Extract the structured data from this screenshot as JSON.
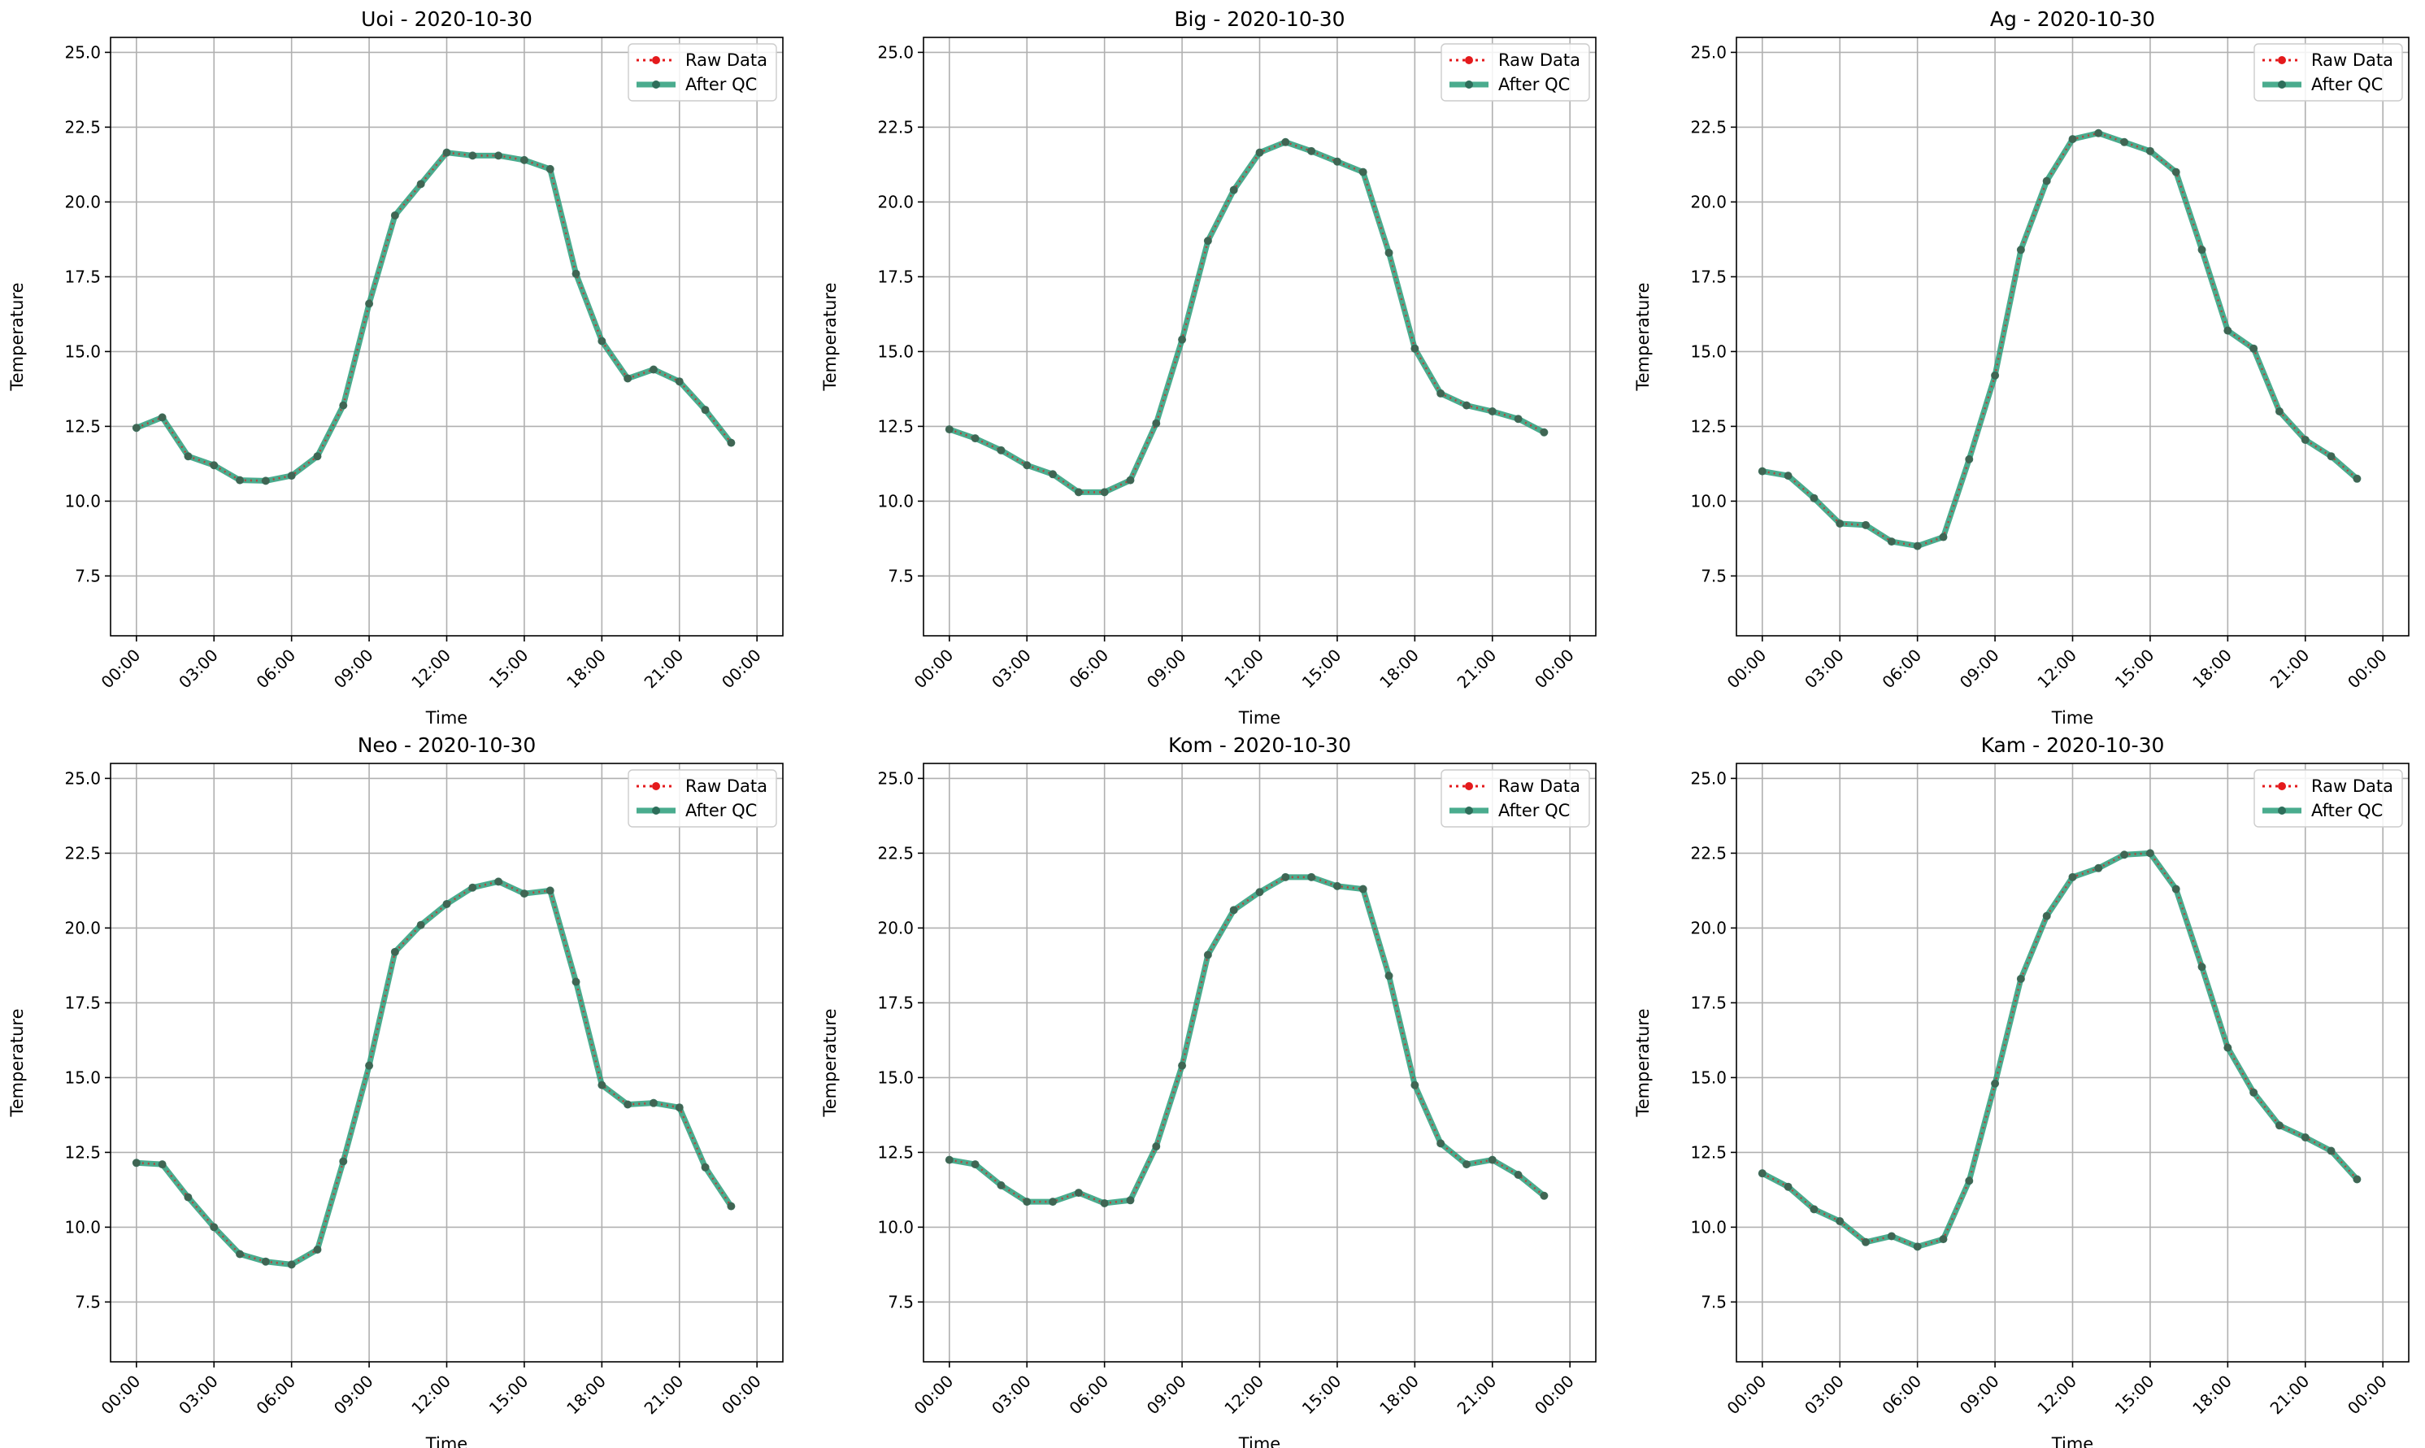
{
  "chart_data": [
    {
      "type": "line",
      "title": "Uoi - 2020-10-30",
      "xlabel": "Time",
      "ylabel": "Temperature",
      "ylim": [
        5.5,
        25.5
      ],
      "yticks": [
        7.5,
        10.0,
        12.5,
        15.0,
        17.5,
        20.0,
        22.5,
        25.0
      ],
      "xticks": [
        "00:00",
        "03:00",
        "06:00",
        "09:00",
        "12:00",
        "15:00",
        "18:00",
        "21:00",
        "00:00"
      ],
      "grid": true,
      "legend": "top-right",
      "x": [
        "00:00",
        "01:00",
        "02:00",
        "03:00",
        "04:00",
        "05:00",
        "06:00",
        "07:00",
        "08:00",
        "09:00",
        "10:00",
        "11:00",
        "12:00",
        "13:00",
        "14:00",
        "15:00",
        "16:00",
        "17:00",
        "18:00",
        "19:00",
        "20:00",
        "21:00",
        "22:00",
        "23:00"
      ],
      "series": [
        {
          "name": "Raw Data",
          "color": "#e41a1c",
          "values": [
            12.45,
            12.8,
            11.5,
            11.2,
            10.7,
            10.68,
            10.85,
            11.5,
            13.2,
            16.6,
            19.55,
            20.6,
            21.65,
            21.55,
            21.55,
            21.4,
            21.1,
            17.6,
            15.35,
            14.1,
            14.4,
            14.0,
            13.05,
            11.95
          ]
        },
        {
          "name": "After QC",
          "color": "#2a9d7a",
          "values": [
            12.45,
            12.8,
            11.5,
            11.2,
            10.7,
            10.68,
            10.85,
            11.5,
            13.2,
            16.6,
            19.55,
            20.6,
            21.65,
            21.55,
            21.55,
            21.4,
            21.1,
            17.6,
            15.35,
            14.1,
            14.4,
            14.0,
            13.05,
            11.95
          ]
        }
      ]
    },
    {
      "type": "line",
      "title": "Big - 2020-10-30",
      "xlabel": "Time",
      "ylabel": "Temperature",
      "ylim": [
        5.5,
        25.5
      ],
      "yticks": [
        7.5,
        10.0,
        12.5,
        15.0,
        17.5,
        20.0,
        22.5,
        25.0
      ],
      "xticks": [
        "00:00",
        "03:00",
        "06:00",
        "09:00",
        "12:00",
        "15:00",
        "18:00",
        "21:00",
        "00:00"
      ],
      "grid": true,
      "legend": "top-right",
      "x": [
        "00:00",
        "01:00",
        "02:00",
        "03:00",
        "04:00",
        "05:00",
        "06:00",
        "07:00",
        "08:00",
        "09:00",
        "10:00",
        "11:00",
        "12:00",
        "13:00",
        "14:00",
        "15:00",
        "16:00",
        "17:00",
        "18:00",
        "19:00",
        "20:00",
        "21:00",
        "22:00",
        "23:00"
      ],
      "series": [
        {
          "name": "Raw Data",
          "color": "#e41a1c",
          "values": [
            12.4,
            12.1,
            11.7,
            11.2,
            10.9,
            10.3,
            10.3,
            10.7,
            12.6,
            15.4,
            18.7,
            20.4,
            21.65,
            22.0,
            21.7,
            21.35,
            21.0,
            18.3,
            15.1,
            13.6,
            13.2,
            13.0,
            12.75,
            12.3
          ]
        },
        {
          "name": "After QC",
          "color": "#2a9d7a",
          "values": [
            12.4,
            12.1,
            11.7,
            11.2,
            10.9,
            10.3,
            10.3,
            10.7,
            12.6,
            15.4,
            18.7,
            20.4,
            21.65,
            22.0,
            21.7,
            21.35,
            21.0,
            18.3,
            15.1,
            13.6,
            13.2,
            13.0,
            12.75,
            12.3
          ]
        }
      ]
    },
    {
      "type": "line",
      "title": "Ag - 2020-10-30",
      "xlabel": "Time",
      "ylabel": "Temperature",
      "ylim": [
        5.5,
        25.5
      ],
      "yticks": [
        7.5,
        10.0,
        12.5,
        15.0,
        17.5,
        20.0,
        22.5,
        25.0
      ],
      "xticks": [
        "00:00",
        "03:00",
        "06:00",
        "09:00",
        "12:00",
        "15:00",
        "18:00",
        "21:00",
        "00:00"
      ],
      "grid": true,
      "legend": "top-right",
      "x": [
        "00:00",
        "01:00",
        "02:00",
        "03:00",
        "04:00",
        "05:00",
        "06:00",
        "07:00",
        "08:00",
        "09:00",
        "10:00",
        "11:00",
        "12:00",
        "13:00",
        "14:00",
        "15:00",
        "16:00",
        "17:00",
        "18:00",
        "19:00",
        "20:00",
        "21:00",
        "22:00",
        "23:00"
      ],
      "series": [
        {
          "name": "Raw Data",
          "color": "#e41a1c",
          "values": [
            11.0,
            10.85,
            10.1,
            9.25,
            9.2,
            8.65,
            8.5,
            8.8,
            11.4,
            14.2,
            18.4,
            20.7,
            22.1,
            22.3,
            22.0,
            21.7,
            21.0,
            18.4,
            15.7,
            15.1,
            13.0,
            12.05,
            11.5,
            10.75
          ]
        },
        {
          "name": "After QC",
          "color": "#2a9d7a",
          "values": [
            11.0,
            10.85,
            10.1,
            9.25,
            9.2,
            8.65,
            8.5,
            8.8,
            11.4,
            14.2,
            18.4,
            20.7,
            22.1,
            22.3,
            22.0,
            21.7,
            21.0,
            18.4,
            15.7,
            15.1,
            13.0,
            12.05,
            11.5,
            10.75
          ]
        }
      ]
    },
    {
      "type": "line",
      "title": "Neo - 2020-10-30",
      "xlabel": "Time",
      "ylabel": "Temperature",
      "ylim": [
        5.5,
        25.5
      ],
      "yticks": [
        7.5,
        10.0,
        12.5,
        15.0,
        17.5,
        20.0,
        22.5,
        25.0
      ],
      "xticks": [
        "00:00",
        "03:00",
        "06:00",
        "09:00",
        "12:00",
        "15:00",
        "18:00",
        "21:00",
        "00:00"
      ],
      "grid": true,
      "legend": "top-right",
      "x": [
        "00:00",
        "01:00",
        "02:00",
        "03:00",
        "04:00",
        "05:00",
        "06:00",
        "07:00",
        "08:00",
        "09:00",
        "10:00",
        "11:00",
        "12:00",
        "13:00",
        "14:00",
        "15:00",
        "16:00",
        "17:00",
        "18:00",
        "19:00",
        "20:00",
        "21:00",
        "22:00",
        "23:00"
      ],
      "series": [
        {
          "name": "Raw Data",
          "color": "#e41a1c",
          "values": [
            12.15,
            12.1,
            11.0,
            10.0,
            9.1,
            8.85,
            8.75,
            9.25,
            12.2,
            15.4,
            19.2,
            20.1,
            20.8,
            21.35,
            21.55,
            21.15,
            21.25,
            18.2,
            14.75,
            14.1,
            14.15,
            14.0,
            12.0,
            10.7
          ]
        },
        {
          "name": "After QC",
          "color": "#2a9d7a",
          "values": [
            12.15,
            12.1,
            11.0,
            10.0,
            9.1,
            8.85,
            8.75,
            9.25,
            12.2,
            15.4,
            19.2,
            20.1,
            20.8,
            21.35,
            21.55,
            21.15,
            21.25,
            18.2,
            14.75,
            14.1,
            14.15,
            14.0,
            12.0,
            10.7
          ]
        }
      ]
    },
    {
      "type": "line",
      "title": "Kom - 2020-10-30",
      "xlabel": "Time",
      "ylabel": "Temperature",
      "ylim": [
        5.5,
        25.5
      ],
      "yticks": [
        7.5,
        10.0,
        12.5,
        15.0,
        17.5,
        20.0,
        22.5,
        25.0
      ],
      "xticks": [
        "00:00",
        "03:00",
        "06:00",
        "09:00",
        "12:00",
        "15:00",
        "18:00",
        "21:00",
        "00:00"
      ],
      "grid": true,
      "legend": "top-right",
      "x": [
        "00:00",
        "01:00",
        "02:00",
        "03:00",
        "04:00",
        "05:00",
        "06:00",
        "07:00",
        "08:00",
        "09:00",
        "10:00",
        "11:00",
        "12:00",
        "13:00",
        "14:00",
        "15:00",
        "16:00",
        "17:00",
        "18:00",
        "19:00",
        "20:00",
        "21:00",
        "22:00",
        "23:00"
      ],
      "series": [
        {
          "name": "Raw Data",
          "color": "#e41a1c",
          "values": [
            12.25,
            12.1,
            11.4,
            10.85,
            10.85,
            11.15,
            10.8,
            10.9,
            12.7,
            15.4,
            19.1,
            20.6,
            21.2,
            21.7,
            21.7,
            21.4,
            21.3,
            18.4,
            14.75,
            12.8,
            12.1,
            12.25,
            11.75,
            11.05
          ]
        },
        {
          "name": "After QC",
          "color": "#2a9d7a",
          "values": [
            12.25,
            12.1,
            11.4,
            10.85,
            10.85,
            11.15,
            10.8,
            10.9,
            12.7,
            15.4,
            19.1,
            20.6,
            21.2,
            21.7,
            21.7,
            21.4,
            21.3,
            18.4,
            14.75,
            12.8,
            12.1,
            12.25,
            11.75,
            11.05
          ]
        }
      ]
    },
    {
      "type": "line",
      "title": "Kam - 2020-10-30",
      "xlabel": "Time",
      "ylabel": "Temperature",
      "ylim": [
        5.5,
        25.5
      ],
      "yticks": [
        7.5,
        10.0,
        12.5,
        15.0,
        17.5,
        20.0,
        22.5,
        25.0
      ],
      "xticks": [
        "00:00",
        "03:00",
        "06:00",
        "09:00",
        "12:00",
        "15:00",
        "18:00",
        "21:00",
        "00:00"
      ],
      "grid": true,
      "legend": "top-right",
      "x": [
        "00:00",
        "01:00",
        "02:00",
        "03:00",
        "04:00",
        "05:00",
        "06:00",
        "07:00",
        "08:00",
        "09:00",
        "10:00",
        "11:00",
        "12:00",
        "13:00",
        "14:00",
        "15:00",
        "16:00",
        "17:00",
        "18:00",
        "19:00",
        "20:00",
        "21:00",
        "22:00",
        "23:00"
      ],
      "series": [
        {
          "name": "Raw Data",
          "color": "#e41a1c",
          "values": [
            11.8,
            11.35,
            10.6,
            10.2,
            9.5,
            9.7,
            9.35,
            9.6,
            11.55,
            14.8,
            18.3,
            20.4,
            21.7,
            22.0,
            22.45,
            22.5,
            21.3,
            18.7,
            16.0,
            14.5,
            13.4,
            13.0,
            12.55,
            11.6
          ]
        },
        {
          "name": "After QC",
          "color": "#2a9d7a",
          "values": [
            11.8,
            11.35,
            10.6,
            10.2,
            9.5,
            9.7,
            9.35,
            9.6,
            11.55,
            14.8,
            18.3,
            20.4,
            21.7,
            22.0,
            22.45,
            22.5,
            21.3,
            18.7,
            16.0,
            14.5,
            13.4,
            13.0,
            12.55,
            11.6
          ]
        }
      ]
    }
  ]
}
